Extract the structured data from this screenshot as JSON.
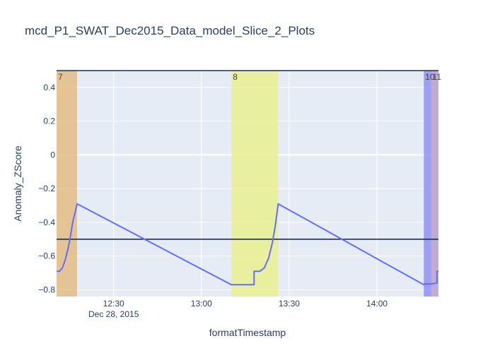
{
  "chart_data": {
    "type": "line",
    "title": "mcd_P1_SWAT_Dec2015_Data_model_Slice_2_Plots",
    "xlabel": "formatTimestamp",
    "ylabel": "Anomaly_ZScore",
    "x_range": [
      "2015-12-28 12:10:30",
      "2015-12-28 14:21:00"
    ],
    "ylim": [
      -0.84,
      0.5
    ],
    "grid": true,
    "x_ticks": [
      {
        "t": "2015-12-28 12:30",
        "label": "12:30",
        "sublabel": "Dec 28, 2015"
      },
      {
        "t": "2015-12-28 13:00",
        "label": "13:00",
        "sublabel": ""
      },
      {
        "t": "2015-12-28 13:30",
        "label": "13:30",
        "sublabel": ""
      },
      {
        "t": "2015-12-28 14:00",
        "label": "14:00",
        "sublabel": ""
      }
    ],
    "y_ticks": [
      {
        "value": 0.4,
        "label": "0.4"
      },
      {
        "value": 0.2,
        "label": "0.2"
      },
      {
        "value": 0,
        "label": "0"
      },
      {
        "value": -0.2,
        "label": "−0.2"
      },
      {
        "value": -0.4,
        "label": "−0.4"
      },
      {
        "value": -0.6,
        "label": "−0.6"
      },
      {
        "value": -0.8,
        "label": "−0.8"
      }
    ],
    "bands": [
      {
        "label": "7",
        "start": "2015-12-28 12:10:30",
        "end": "2015-12-28 12:17:30",
        "color": "#e3b97d"
      },
      {
        "label": "8",
        "start": "2015-12-28 13:10:15",
        "end": "2015-12-28 13:26:15",
        "color": "#e8f089"
      },
      {
        "label": "10",
        "start": "2015-12-28 14:16:00",
        "end": "2015-12-28 14:21:00",
        "color": "#8a8cf5"
      },
      {
        "label": "11",
        "start": "2015-12-28 14:18:30",
        "end": "2015-12-28 14:21:00",
        "color": "#c9aecb"
      }
    ],
    "hlines": [
      {
        "value": 0.5,
        "color": "#1f2f4f"
      },
      {
        "value": -0.5,
        "color": "#1f2f4f"
      }
    ],
    "series": [
      {
        "color": "#636efa",
        "x": [
          "2015-12-28 12:10:30",
          "2015-12-28 12:11:30",
          "2015-12-28 12:12:30",
          "2015-12-28 12:13:30",
          "2015-12-28 12:14:30",
          "2015-12-28 12:15:15",
          "2015-12-28 12:16:00",
          "2015-12-28 12:17:00",
          "2015-12-28 12:17:30",
          "2015-12-28 13:10:15",
          "2015-12-28 13:18:00",
          "2015-12-28 13:18:00",
          "2015-12-28 13:20:00",
          "2015-12-28 13:21:30",
          "2015-12-28 13:23:00",
          "2015-12-28 13:24:15",
          "2015-12-28 13:25:15",
          "2015-12-28 13:26:15",
          "2015-12-28 14:16:00",
          "2015-12-28 14:16:15",
          "2015-12-28 14:18:30",
          "2015-12-28 14:20:30",
          "2015-12-28 14:20:30",
          "2015-12-28 14:21:00"
        ],
        "y": [
          -0.69,
          -0.69,
          -0.67,
          -0.62,
          -0.55,
          -0.48,
          -0.4,
          -0.33,
          -0.29,
          -0.77,
          -0.77,
          -0.69,
          -0.69,
          -0.67,
          -0.61,
          -0.52,
          -0.42,
          -0.29,
          -0.77,
          -0.765,
          -0.765,
          -0.76,
          -0.69,
          -0.69
        ]
      }
    ]
  }
}
